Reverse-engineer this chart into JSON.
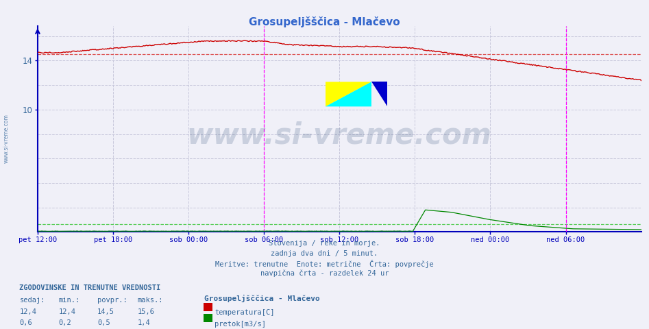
{
  "title": "Grosupeljšščica - Mlačevo",
  "title_color": "#3366cc",
  "bg_color": "#f0f0f8",
  "grid_color": "#c8c8dc",
  "axis_color": "#0000bb",
  "text_color": "#336699",
  "tick_labels": [
    "pet 12:00",
    "pet 18:00",
    "sob 00:00",
    "sob 06:00",
    "sob 12:00",
    "sob 18:00",
    "ned 00:00",
    "ned 06:00"
  ],
  "tick_positions": [
    0,
    72,
    144,
    216,
    288,
    360,
    432,
    504
  ],
  "n_points": 577,
  "xlim_max": 576,
  "ylim_max": 16.8,
  "temp_avg": 14.5,
  "temp_color": "#cc0000",
  "flow_color": "#008800",
  "avg_temp_color": "#dd5555",
  "avg_flow_color": "#55cc55",
  "magenta_color": "#ff00ff",
  "magenta_vlines": [
    216,
    504
  ],
  "yticks": [
    10,
    14
  ],
  "footer_lines": [
    "Slovenija / reke in morje.",
    "zadnja dva dni / 5 minut.",
    "Meritve: trenutne  Enote: metrične  Črta: povprečje",
    "navpična črta - razdelek 24 ur"
  ],
  "stat_header": "ZGODOVINSKE IN TRENUTNE VREDNOSTI",
  "stat_cols": [
    "sedaj:",
    "min.:",
    "povpr.:",
    "maks.:"
  ],
  "stat_temp_vals": [
    "12,4",
    "12,4",
    "14,5",
    "15,6"
  ],
  "stat_flow_vals": [
    "0,6",
    "0,2",
    "0,5",
    "1,4"
  ],
  "legend_station": "Grosupeljšččica - Mlačevo",
  "legend_temp": "temperatura[C]",
  "legend_flow": "pretok[m3/s]",
  "watermark_text": "www.si-vreme.com",
  "watermark_color": "#1a3a6a",
  "watermark_alpha": 0.18,
  "side_text": "www.si-vreme.com"
}
